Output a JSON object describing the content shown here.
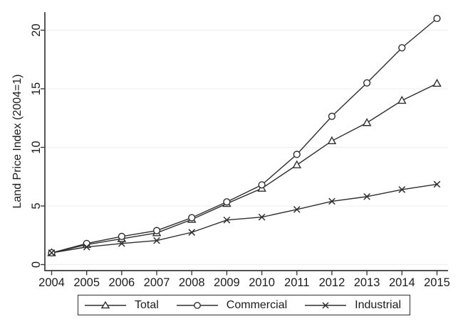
{
  "chart_data": {
    "type": "line",
    "title": "",
    "xlabel": "",
    "ylabel": "Land Price Index (2004=1)",
    "x": [
      2004,
      2005,
      2006,
      2007,
      2008,
      2009,
      2010,
      2011,
      2012,
      2013,
      2014,
      2015
    ],
    "yticks": [
      0,
      5,
      10,
      15,
      20
    ],
    "ylim": [
      0,
      21.5
    ],
    "grid": "horizontal",
    "legend_position": "bottom-center-boxed",
    "series": [
      {
        "name": "Total",
        "marker": "triangle",
        "values": [
          1.0,
          1.7,
          2.2,
          2.7,
          3.85,
          5.2,
          6.5,
          8.5,
          10.55,
          12.1,
          14.0,
          15.45
        ]
      },
      {
        "name": "Commercial",
        "marker": "circle",
        "values": [
          1.0,
          1.8,
          2.4,
          2.9,
          4.0,
          5.35,
          6.8,
          9.4,
          12.65,
          15.5,
          18.5,
          21.0
        ]
      },
      {
        "name": "Industrial",
        "marker": "x",
        "values": [
          1.0,
          1.5,
          1.8,
          2.05,
          2.75,
          3.8,
          4.05,
          4.7,
          5.4,
          5.8,
          6.4,
          6.85
        ]
      }
    ],
    "colors": {
      "line": "#2e2e2e",
      "axis": "#3a3a3a",
      "grid": "#eff0f2",
      "text": "#1c1c1c",
      "background": "#ffffff"
    }
  }
}
